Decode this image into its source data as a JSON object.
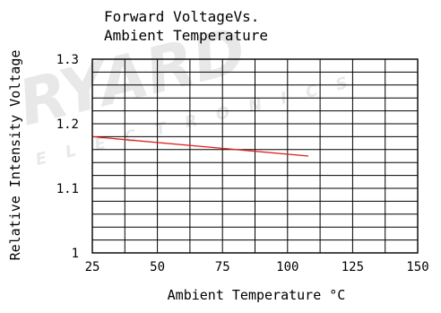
{
  "chart_data": {
    "type": "line",
    "title": [
      "Forward VoltageVs.",
      "Ambient Temperature"
    ],
    "xlabel": "Ambient Temperature °C",
    "ylabel": "Relative Intensity Voltage",
    "xlim": [
      25,
      150
    ],
    "ylim": [
      1,
      1.3
    ],
    "x_ticks": [
      25,
      50,
      75,
      100,
      125,
      150
    ],
    "x_tick_labels": [
      "25",
      "50",
      "75",
      "100",
      "125",
      "150"
    ],
    "y_ticks": [
      1,
      1.1,
      1.2,
      1.3
    ],
    "y_tick_labels": [
      "1",
      "1.1",
      "1.2",
      "1.3"
    ],
    "x_gridlines": [
      25,
      37.5,
      50,
      62.5,
      75,
      87.5,
      100,
      112.5,
      125,
      137.5,
      150
    ],
    "y_gridlines": [
      1,
      1.02,
      1.04,
      1.06,
      1.08,
      1.1,
      1.12,
      1.14,
      1.16,
      1.18,
      1.2,
      1.22,
      1.24,
      1.26,
      1.28,
      1.3
    ],
    "grid": true,
    "series": [
      {
        "color": "#e0201c",
        "x": [
          25,
          108
        ],
        "y": [
          1.18,
          1.15
        ]
      }
    ]
  },
  "watermark": {
    "text": "RYARD",
    "subtext": "ELECTRONICS",
    "color": "#d6d6d6"
  }
}
